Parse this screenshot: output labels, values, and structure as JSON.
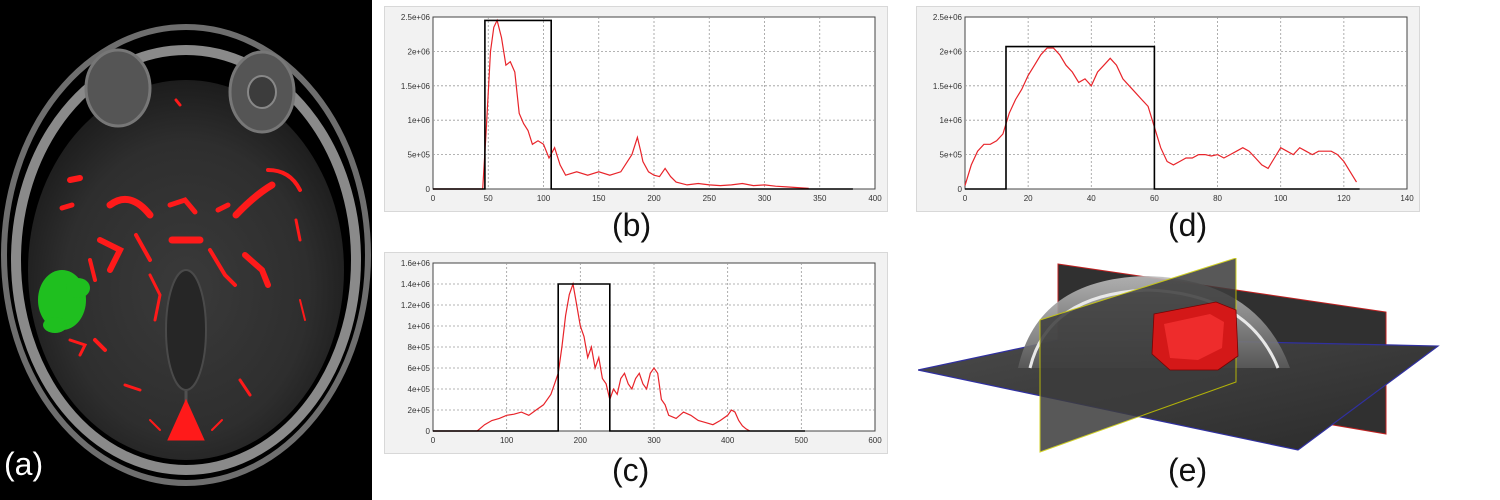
{
  "captions": {
    "a": "(a)",
    "b": "(b)",
    "c": "(c)",
    "d": "(d)",
    "e": "(e)"
  },
  "colors": {
    "curve": "#e8242a",
    "window": "#000000",
    "vessel": "#ff1a1a",
    "lesion": "#1fbf1f",
    "grid": "#9a9a9a"
  },
  "chart_data": [
    {
      "id": "b",
      "type": "line",
      "xlim": [
        0,
        400
      ],
      "ylim": [
        0,
        2500000
      ],
      "xticks": [
        0,
        50,
        100,
        150,
        200,
        250,
        300,
        350,
        400
      ],
      "yticks": [
        0,
        500000,
        1000000,
        1500000,
        2000000,
        2500000
      ],
      "xtick_labels": [
        "0",
        "50",
        "100",
        "150",
        "200",
        "250",
        "300",
        "350",
        "400"
      ],
      "ytick_labels": [
        "0",
        "5e+05",
        "1e+06",
        "1.5e+06",
        "2e+06",
        "2.5e+06"
      ],
      "grid": true,
      "series": [
        {
          "role": "histogram",
          "x": [
            0,
            45,
            48,
            52,
            55,
            58,
            62,
            66,
            70,
            74,
            78,
            82,
            86,
            90,
            95,
            100,
            105,
            110,
            115,
            120,
            130,
            140,
            150,
            160,
            170,
            180,
            185,
            188,
            190,
            195,
            200,
            205,
            210,
            215,
            220,
            230,
            240,
            250,
            260,
            270,
            280,
            290,
            300,
            310,
            320,
            330,
            340
          ],
          "y": [
            0,
            0,
            800000,
            2000000,
            2350000,
            2450000,
            2200000,
            1800000,
            1850000,
            1700000,
            1100000,
            950000,
            850000,
            650000,
            700000,
            650000,
            450000,
            600000,
            350000,
            200000,
            250000,
            200000,
            250000,
            200000,
            250000,
            500000,
            750000,
            550000,
            400000,
            250000,
            200000,
            180000,
            300000,
            180000,
            100000,
            60000,
            80000,
            60000,
            50000,
            60000,
            80000,
            50000,
            60000,
            40000,
            30000,
            20000,
            10000
          ]
        },
        {
          "role": "window",
          "x": [
            0,
            47,
            47,
            107,
            107,
            380
          ],
          "y": [
            0,
            0,
            2450000,
            2450000,
            0,
            0
          ]
        }
      ]
    },
    {
      "id": "c",
      "type": "line",
      "xlim": [
        0,
        600
      ],
      "ylim": [
        0,
        1600000
      ],
      "xticks": [
        0,
        100,
        200,
        300,
        400,
        500,
        600
      ],
      "yticks": [
        0,
        200000,
        400000,
        600000,
        800000,
        1000000,
        1200000,
        1400000,
        1600000
      ],
      "xtick_labels": [
        "0",
        "100",
        "200",
        "300",
        "400",
        "500",
        "600"
      ],
      "ytick_labels": [
        "0",
        "2e+05",
        "4e+05",
        "6e+05",
        "8e+05",
        "1e+06",
        "1.2e+06",
        "1.4e+06",
        "1.6e+06"
      ],
      "grid": true,
      "series": [
        {
          "role": "histogram",
          "x": [
            0,
            60,
            70,
            80,
            90,
            100,
            110,
            120,
            130,
            140,
            150,
            160,
            165,
            170,
            175,
            180,
            185,
            190,
            195,
            200,
            205,
            210,
            215,
            220,
            225,
            230,
            235,
            240,
            245,
            250,
            255,
            260,
            265,
            270,
            275,
            280,
            285,
            290,
            295,
            300,
            305,
            310,
            315,
            320,
            330,
            340,
            350,
            360,
            370,
            380,
            390,
            400,
            405,
            410,
            415,
            420,
            425,
            430
          ],
          "y": [
            0,
            0,
            60000,
            100000,
            120000,
            150000,
            160000,
            180000,
            150000,
            200000,
            250000,
            350000,
            450000,
            550000,
            800000,
            1100000,
            1300000,
            1400000,
            1200000,
            1000000,
            900000,
            700000,
            800000,
            600000,
            700000,
            500000,
            450000,
            300000,
            400000,
            350000,
            500000,
            550000,
            450000,
            400000,
            500000,
            550000,
            450000,
            400000,
            550000,
            600000,
            550000,
            300000,
            250000,
            150000,
            120000,
            180000,
            150000,
            100000,
            80000,
            60000,
            100000,
            150000,
            200000,
            180000,
            100000,
            50000,
            20000,
            0
          ]
        },
        {
          "role": "window",
          "x": [
            0,
            170,
            170,
            240,
            240,
            505
          ],
          "y": [
            0,
            0,
            1400000,
            1400000,
            0,
            0
          ]
        }
      ]
    },
    {
      "id": "d",
      "type": "line",
      "xlim": [
        0,
        140
      ],
      "ylim": [
        0,
        2500000
      ],
      "xticks": [
        0,
        20,
        40,
        60,
        80,
        100,
        120,
        140
      ],
      "yticks": [
        0,
        500000,
        1000000,
        1500000,
        2000000,
        2500000
      ],
      "xtick_labels": [
        "0",
        "20",
        "40",
        "60",
        "80",
        "100",
        "120",
        "140"
      ],
      "ytick_labels": [
        "0",
        "5e+05",
        "1e+06",
        "1.5e+06",
        "2e+06",
        "2.5e+06"
      ],
      "grid": true,
      "series": [
        {
          "role": "histogram",
          "x": [
            0,
            2,
            4,
            6,
            8,
            10,
            12,
            14,
            16,
            18,
            20,
            22,
            24,
            26,
            28,
            30,
            32,
            34,
            36,
            38,
            40,
            42,
            44,
            46,
            48,
            50,
            52,
            54,
            56,
            58,
            60,
            62,
            64,
            66,
            68,
            70,
            72,
            74,
            76,
            78,
            80,
            82,
            84,
            86,
            88,
            90,
            92,
            94,
            96,
            98,
            100,
            102,
            104,
            106,
            108,
            110,
            112,
            114,
            116,
            118,
            120,
            122,
            124
          ],
          "y": [
            50000,
            350000,
            550000,
            650000,
            650000,
            700000,
            800000,
            1100000,
            1300000,
            1450000,
            1650000,
            1800000,
            1950000,
            2050000,
            2050000,
            1950000,
            1800000,
            1700000,
            1550000,
            1600000,
            1500000,
            1700000,
            1800000,
            1900000,
            1800000,
            1600000,
            1500000,
            1400000,
            1300000,
            1200000,
            900000,
            600000,
            400000,
            350000,
            400000,
            450000,
            450000,
            500000,
            500000,
            480000,
            500000,
            450000,
            500000,
            550000,
            600000,
            550000,
            450000,
            350000,
            300000,
            450000,
            600000,
            550000,
            500000,
            600000,
            550000,
            500000,
            550000,
            550000,
            550000,
            500000,
            400000,
            250000,
            100000
          ]
        },
        {
          "role": "window",
          "x": [
            0,
            13,
            13,
            60,
            60,
            125
          ],
          "y": [
            0,
            0,
            2070000,
            2070000,
            0,
            0
          ]
        }
      ]
    }
  ]
}
